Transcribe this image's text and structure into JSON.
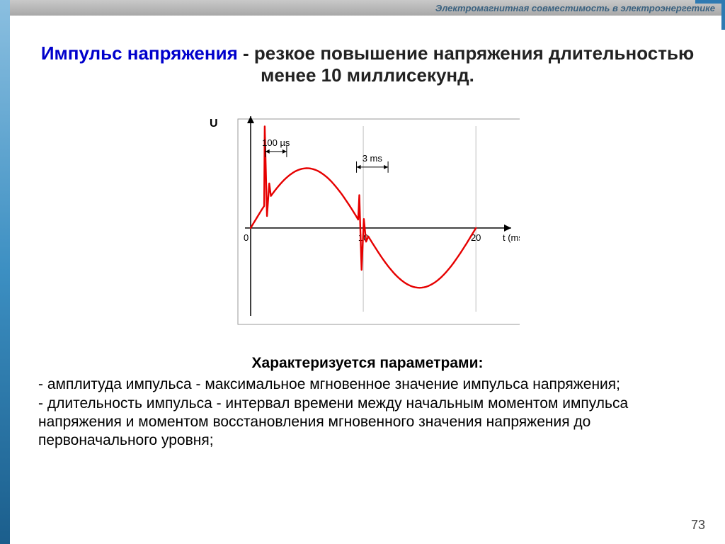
{
  "header": {
    "topbar_text": "Электромагнитная совместимость в электроэнергетике"
  },
  "title": {
    "term": "Импульс напряжения",
    "rest": " - резкое повышение напряжения длительностью менее 10 миллисекунд."
  },
  "chart": {
    "type": "line",
    "y_label": "U",
    "x_label": "t (ms)",
    "x_ticks": [
      "0",
      "10",
      "20"
    ],
    "annotation1": "100 µs",
    "annotation2": "3 ms",
    "xlim": [
      0,
      22
    ],
    "ylim": [
      -1.4,
      1.8
    ],
    "line_color": "#e60000",
    "line_width": 2.4,
    "axis_color": "#000000",
    "grid_color": "#bfbfbf",
    "background_color": "#ffffff",
    "border_color": "#9a9a9a",
    "annotation_font": 13,
    "tick_font": 13,
    "sine_base": {
      "amplitude": 1.0,
      "period": 20
    },
    "spike1": {
      "at_x": 1.2,
      "peak": 1.7,
      "undershoot": 0.2
    },
    "spike2": {
      "at_x": 9.6,
      "peak": 0.55,
      "undershoot": -0.7
    }
  },
  "body": {
    "subheading": "Характеризуется параметрами:",
    "bullet1": "- амплитуда импульса - максимальное мгновенное значение импульса напряжения;",
    "bullet2": "- длительность импульса - интервал времени между начальным моментом импульса напряжения и моментом восстановления мгновенного значения напряжения до первоначального уровня;"
  },
  "page_number": "73",
  "colors": {
    "title_term": "#0000cc",
    "title_rest": "#222222",
    "topbar_text": "#3b6280"
  }
}
